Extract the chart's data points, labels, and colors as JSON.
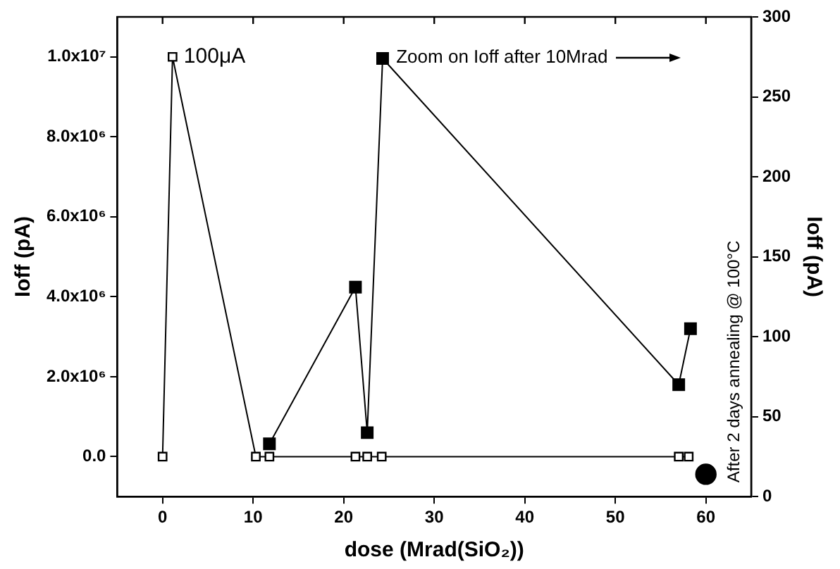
{
  "chart_data": {
    "type": "line",
    "xlabel": "dose (Mrad(SiO₂))",
    "ylabel": "Ioff (pA)",
    "y2label": "Ioff (pA)",
    "xlim": [
      -5,
      65
    ],
    "xticks": [
      0,
      10,
      20,
      30,
      40,
      50,
      60
    ],
    "ylim": [
      -1000000,
      11000000
    ],
    "yticks": [
      {
        "value": 0,
        "label": "0.0"
      },
      {
        "value": 2000000,
        "label": "2.0x10⁶"
      },
      {
        "value": 4000000,
        "label": "4.0x10⁶"
      },
      {
        "value": 6000000,
        "label": "6.0x10⁶"
      },
      {
        "value": 8000000,
        "label": "8.0x10⁶"
      },
      {
        "value": 10000000,
        "label": "1.0x10⁷"
      }
    ],
    "y2lim": [
      0,
      300
    ],
    "y2ticks": [
      0,
      50,
      100,
      150,
      200,
      250,
      300
    ],
    "grid": false,
    "legend": false,
    "series": [
      {
        "color": "#000000",
        "marker": "square",
        "x": [
          0,
          1.1,
          10.3,
          11.8,
          21.3,
          22.6,
          24.2,
          57,
          58.1
        ],
        "values": [
          0,
          10000000,
          0,
          0,
          0,
          0,
          0,
          0,
          0
        ]
      },
      {
        "color": "#000000",
        "marker": "square",
        "axis": "y2",
        "x": [
          11.8,
          21.3,
          22.6,
          24.3,
          57,
          58.3
        ],
        "values": [
          33,
          131,
          40,
          274,
          70,
          105
        ]
      },
      {
        "type": "scatter",
        "color": "#000000",
        "marker": "circle",
        "axis": "y2",
        "x": [
          60
        ],
        "values": [
          14
        ]
      }
    ],
    "annotations": [
      {
        "text": "100μA",
        "x": 1.1,
        "y": 10000000
      },
      "Zoom on Ioff after 10Mrad",
      "After 2 days annealing @ 100°C"
    ]
  }
}
